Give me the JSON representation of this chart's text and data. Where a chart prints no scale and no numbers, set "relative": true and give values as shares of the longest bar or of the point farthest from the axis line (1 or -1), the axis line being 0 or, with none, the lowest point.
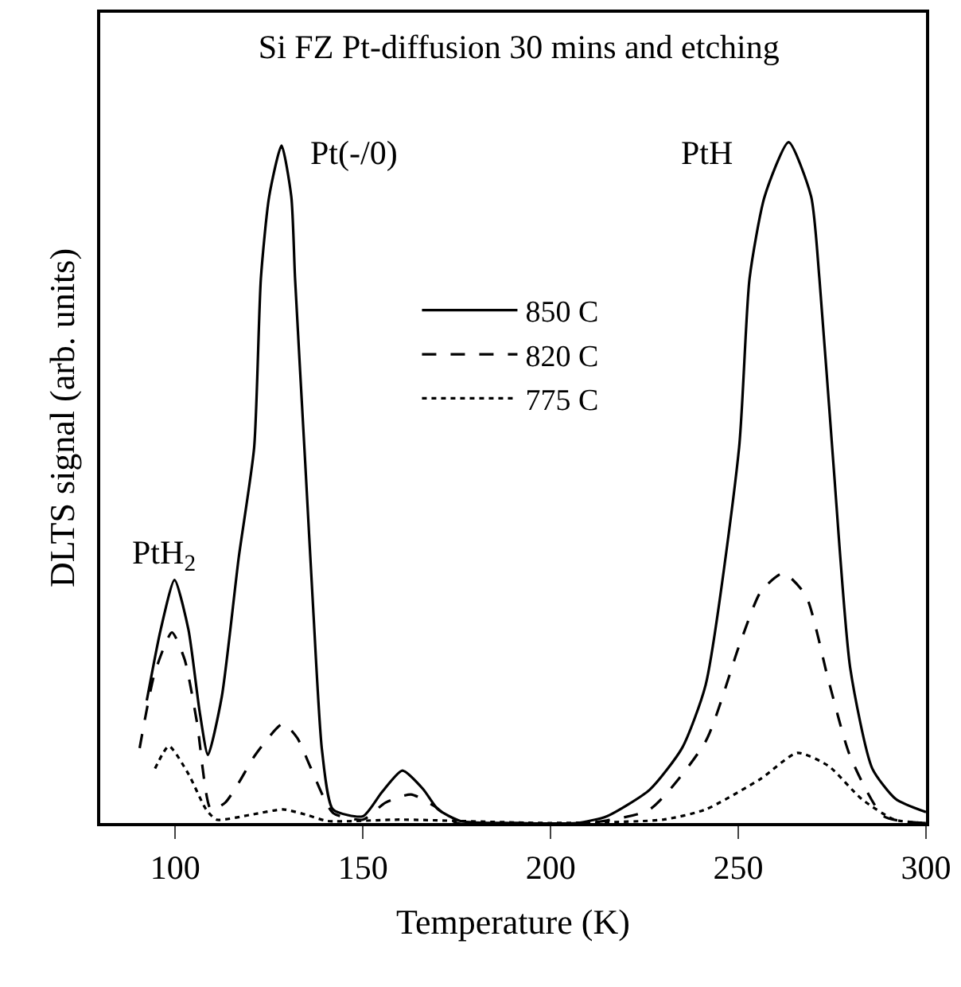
{
  "chart_data": {
    "type": "line",
    "relative": true,
    "title": "Si FZ Pt-diffusion 30 mins and etching",
    "xlabel": "Temperature (K)",
    "ylabel": "DLTS signal (arb. units)",
    "xlim": [
      80,
      300
    ],
    "xticks": [
      100,
      150,
      200,
      250,
      300
    ],
    "legend": "top",
    "marker": "none",
    "series": [
      {
        "name": "850 C",
        "color": "#000000",
        "line_style": "solid",
        "x": [
          92.4,
          96.1,
          99.8,
          103.5,
          106.5,
          108.7,
          112.4,
          116.9,
          121,
          122.8,
          125,
          128.3,
          130.9,
          131.9,
          134.6,
          136.8,
          139.1,
          142,
          150,
          155,
          160.5,
          166,
          170,
          176,
          190,
          207,
          215,
          226.4,
          235,
          241.3,
          250.2,
          253,
          257,
          263.4,
          269.4,
          271.6,
          275.3,
          279.8,
          285.7,
          292,
          300
        ],
        "values": [
          0.18,
          0.284,
          0.357,
          0.284,
          0.163,
          0.1,
          0.186,
          0.39,
          0.551,
          0.8,
          0.92,
          0.995,
          0.92,
          0.8,
          0.53,
          0.308,
          0.106,
          0.02,
          0.01,
          0.045,
          0.077,
          0.05,
          0.02,
          0.003,
          0.0,
          0.0,
          0.01,
          0.049,
          0.11,
          0.203,
          0.551,
          0.8,
          0.92,
          1.0,
          0.92,
          0.8,
          0.53,
          0.228,
          0.08,
          0.035,
          0.016
        ]
      },
      {
        "name": "820 C",
        "color": "#000000",
        "line_style": "dashed",
        "x": [
          90.5,
          94.5,
          99.1,
          102.5,
          105.8,
          109.5,
          113.3,
          117,
          121.3,
          128.7,
          132.5,
          136.1,
          142,
          150,
          156,
          162.8,
          169,
          175,
          190,
          210,
          226.4,
          241.3,
          250.2,
          256,
          262,
          268,
          274,
          279.8,
          288.7,
          300
        ],
        "values": [
          0.11,
          0.22,
          0.28,
          0.24,
          0.147,
          0.02,
          0.03,
          0.06,
          0.1,
          0.146,
          0.125,
          0.081,
          0.015,
          0.005,
          0.03,
          0.042,
          0.025,
          0.0,
          0.0,
          0.0,
          0.02,
          0.12,
          0.26,
          0.34,
          0.367,
          0.334,
          0.21,
          0.098,
          0.01,
          0.0
        ]
      },
      {
        "name": "775 C",
        "color": "#000000",
        "line_style": "dotted",
        "x": [
          94.6,
          98.3,
          103.5,
          108.2,
          111,
          120,
          128.7,
          135,
          140.5,
          160,
          200,
          230,
          241.3,
          256,
          265.7,
          274,
          282.9,
          291.6,
          300
        ],
        "values": [
          0.08,
          0.113,
          0.072,
          0.02,
          0.005,
          0.012,
          0.02,
          0.012,
          0.003,
          0.005,
          0.0,
          0.005,
          0.02,
          0.065,
          0.103,
          0.084,
          0.035,
          0.005,
          0.0
        ]
      }
    ],
    "annotations": [
      "PtH$_{2}$",
      "Pt(-/0)",
      "PtH"
    ]
  }
}
